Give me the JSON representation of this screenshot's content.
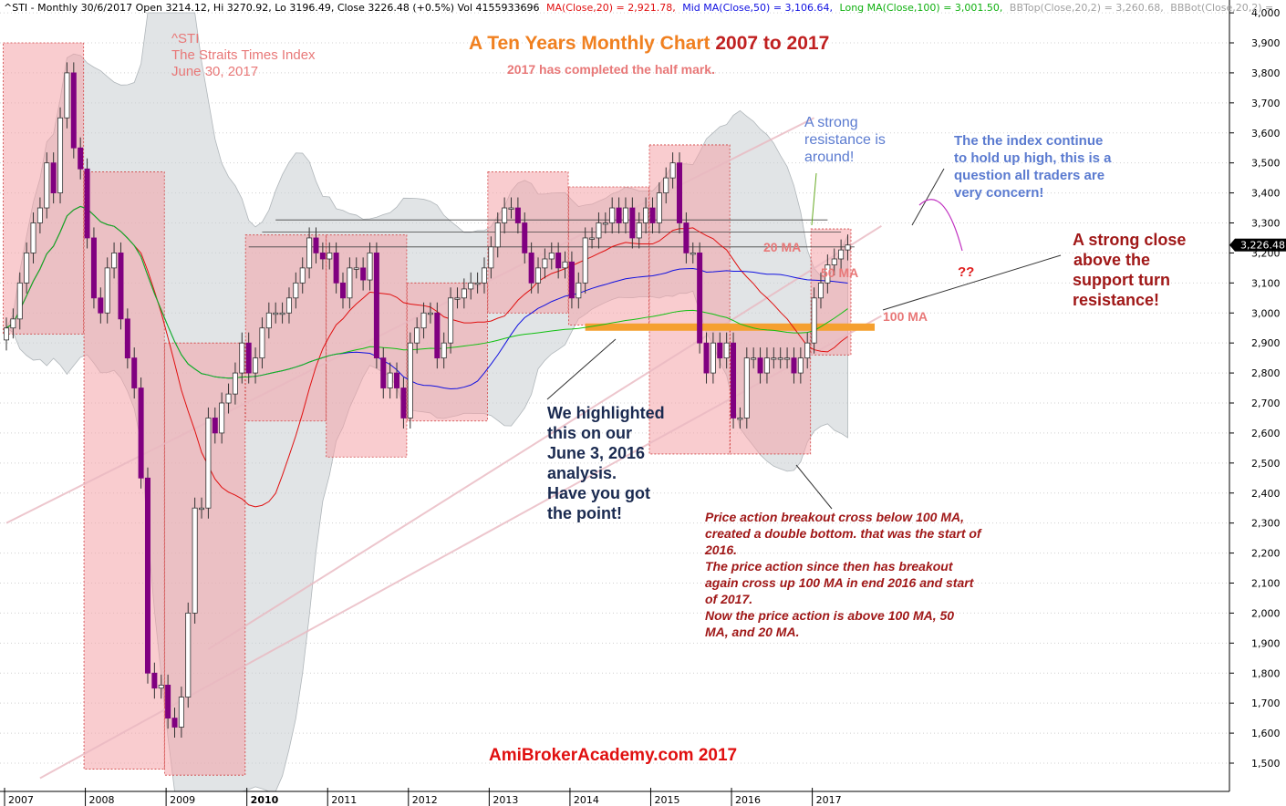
{
  "header": {
    "prefix": "^STI - Monthly 30/6/2017 Open 3214.12, Hi 3270.92, Lo 3196.49, Close 3226.48 (+0.5%) Vol 4155933696",
    "ma20": "MA(Close,20) = 2,921.78,",
    "ma50": "Mid MA(Close,50) = 3,106.64,",
    "ma100": "Long MA(Close,100) = 3,001.50,",
    "bbtop": "BBTop(Close,20,2) = 3,260.68,",
    "bbbot": "BBBot(Close,20,2) ="
  },
  "colors": {
    "up_fill": "#ffffff",
    "down_fill": "#800080",
    "ma20": "#e01010",
    "ma50": "#1010e0",
    "ma100": "#10c010",
    "band": "#c8ced2",
    "year_box": "#f4a3a8",
    "orange": "#f5a030",
    "price_badge": "#000000"
  },
  "chart_data": {
    "type": "candlestick",
    "title": "A Ten Years Monthly Chart 2007 to 2017",
    "y_range": [
      1450,
      4010
    ],
    "y_ticks": [
      1500,
      1600,
      1700,
      1800,
      1900,
      2000,
      2100,
      2200,
      2300,
      2400,
      2500,
      2600,
      2700,
      2800,
      2900,
      3000,
      3100,
      3200,
      3300,
      3400,
      3500,
      3600,
      3700,
      3800,
      3900,
      4000
    ],
    "x_labels": [
      "2007",
      "2008",
      "2009",
      "2010",
      "2011",
      "2012",
      "2013",
      "2014",
      "2015",
      "2016",
      "2017"
    ],
    "last_close": "3,226.48",
    "year_ranges": [
      {
        "year": "2007",
        "high": 3900,
        "low": 2930
      },
      {
        "year": "2008",
        "high": 3470,
        "low": 1480
      },
      {
        "year": "2009",
        "high": 2900,
        "low": 1460
      },
      {
        "year": "2010",
        "high": 3260,
        "low": 2640
      },
      {
        "year": "2011",
        "high": 3260,
        "low": 2520
      },
      {
        "year": "2012",
        "high": 3100,
        "low": 2640
      },
      {
        "year": "2013",
        "high": 3470,
        "low": 3000
      },
      {
        "year": "2014",
        "high": 3420,
        "low": 2960
      },
      {
        "year": "2015",
        "high": 3560,
        "low": 2530
      },
      {
        "year": "2016",
        "high": 2960,
        "low": 2530
      },
      {
        "year": "2017",
        "high": 3280,
        "low": 2860
      }
    ],
    "monthly_close": [
      2950,
      2980,
      3100,
      3200,
      3300,
      3350,
      3500,
      3400,
      3650,
      3800,
      3550,
      3480,
      3250,
      3050,
      3000,
      3150,
      3200,
      2980,
      2850,
      2750,
      2450,
      1800,
      1750,
      1760,
      1650,
      1620,
      1720,
      2000,
      2350,
      2350,
      2650,
      2600,
      2700,
      2730,
      2800,
      2900,
      2800,
      2850,
      2950,
      3000,
      3000,
      3000,
      3050,
      3100,
      3150,
      3250,
      3200,
      3180,
      3200,
      3100,
      3050,
      3150,
      3150,
      3110,
      3200,
      2850,
      2750,
      2800,
      2750,
      2650,
      2900,
      2950,
      3000,
      3000,
      2850,
      2900,
      3050,
      3050,
      3080,
      3100,
      3100,
      3150,
      3220,
      3300,
      3350,
      3350,
      3300,
      3200,
      3100,
      3150,
      3180,
      3200,
      3150,
      3170,
      3050,
      3100,
      3250,
      3250,
      3300,
      3300,
      3350,
      3300,
      3350,
      3250,
      3300,
      3350,
      3300,
      3400,
      3450,
      3500,
      3300,
      3200,
      3200,
      2900,
      2800,
      2900,
      2850,
      2900,
      2650,
      2650,
      2850,
      2850,
      2800,
      2850,
      2850,
      2850,
      2850,
      2800,
      2850,
      2900,
      3050,
      3100,
      3160,
      3180,
      3210,
      3226.48
    ],
    "series": [
      {
        "name": "20 MA"
      },
      {
        "name": "50 MA"
      },
      {
        "name": "100 MA"
      }
    ]
  },
  "annotations": {
    "ticker_1": "^STI",
    "ticker_2": "The Straits Times Index",
    "ticker_3": "June 30, 2017",
    "title_main": "A Ten Years Monthly Chart",
    "title_years": " 2007 to 2017",
    "subtitle": "2017 has completed the half mark.",
    "strong_res": [
      "A strong",
      "resistance is",
      "around!"
    ],
    "index_hold": [
      "The the index continue",
      "to hold up high, this is a",
      "question all traders are",
      "very concern!"
    ],
    "strong_close": [
      "A strong close",
      "above the",
      "support turn",
      "resistance!"
    ],
    "question": "??",
    "highlight": [
      "We highlighted",
      "this on our",
      "June 3, 2016",
      "analysis.",
      "Have you got",
      "the point!"
    ],
    "price_action": [
      "Price action breakout cross below 100 MA,",
      "created a double bottom. that was the start of",
      "2016.",
      "The price action since then has breakout",
      "again cross up 100 MA in end 2016 and start",
      "of 2017.",
      "Now the price action is above 100 MA, 50",
      "MA, and 20 MA."
    ],
    "ma20_label": "20 MA",
    "ma50_label": "50 MA",
    "ma100_label": "100 MA",
    "footer": "AmiBrokerAcademy.com  2017"
  }
}
